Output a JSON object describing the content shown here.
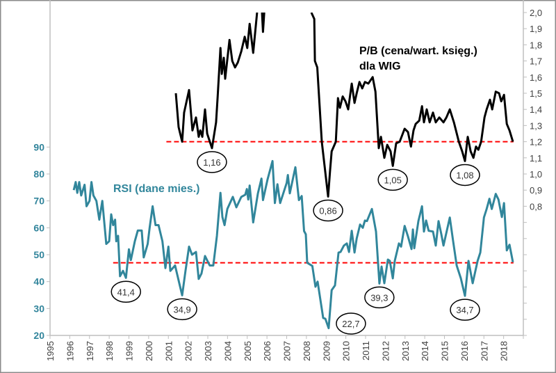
{
  "chart_data": {
    "type": "line",
    "x_range": [
      1995,
      2019
    ],
    "x_tick_labels": [
      "1995",
      "1996",
      "1997",
      "1998",
      "1999",
      "2000",
      "2001",
      "2002",
      "2003",
      "2004",
      "2005",
      "2006",
      "2007",
      "2008",
      "2009",
      "2010",
      "2011",
      "2012",
      "2013",
      "2014",
      "2015",
      "2016",
      "2017",
      "2018"
    ],
    "left_axis": {
      "range": [
        20,
        140
      ],
      "tick_labels": [
        "20",
        "30",
        "40",
        "50",
        "60",
        "70",
        "80",
        "90"
      ],
      "tick_values": [
        20,
        30,
        40,
        50,
        60,
        70,
        80,
        90
      ]
    },
    "right_axis": {
      "range": [
        0,
        2.0
      ],
      "tick_labels": [
        "0,8",
        "0,9",
        "1,0",
        "1,1",
        "1,2",
        "1,3",
        "1,4",
        "1,5",
        "1,6",
        "1,7",
        "1,8",
        "1,9",
        "2,0"
      ],
      "tick_values": [
        0.8,
        0.9,
        1.0,
        1.1,
        1.2,
        1.3,
        1.4,
        1.5,
        1.6,
        1.7,
        1.8,
        1.9,
        2.0
      ]
    },
    "grid": false,
    "colors": {
      "rsi": "#31869b",
      "pb": "#000000",
      "threshold": "#ff0000"
    },
    "series": [
      {
        "name": "RSI (dane mies.)",
        "axis": "left",
        "points": [
          [
            1996.2,
            74
          ],
          [
            1996.3,
            77
          ],
          [
            1996.38,
            73
          ],
          [
            1996.48,
            77
          ],
          [
            1996.58,
            72
          ],
          [
            1996.75,
            76
          ],
          [
            1996.85,
            68
          ],
          [
            1997.0,
            70
          ],
          [
            1997.1,
            77
          ],
          [
            1997.2,
            72
          ],
          [
            1997.35,
            70
          ],
          [
            1997.5,
            63
          ],
          [
            1997.65,
            70
          ],
          [
            1997.85,
            54
          ],
          [
            1998.0,
            55
          ],
          [
            1998.1,
            65
          ],
          [
            1998.2,
            61
          ],
          [
            1998.3,
            63
          ],
          [
            1998.36,
            55
          ],
          [
            1998.45,
            57
          ],
          [
            1998.55,
            42
          ],
          [
            1998.7,
            44
          ],
          [
            1998.85,
            41.4
          ],
          [
            1999.0,
            52
          ],
          [
            1999.1,
            48
          ],
          [
            1999.3,
            55
          ],
          [
            1999.45,
            59
          ],
          [
            1999.65,
            59
          ],
          [
            1999.75,
            49
          ],
          [
            1999.95,
            54
          ],
          [
            2000.05,
            60
          ],
          [
            2000.2,
            68
          ],
          [
            2000.35,
            61
          ],
          [
            2000.5,
            61
          ],
          [
            2000.7,
            55
          ],
          [
            2000.85,
            45
          ],
          [
            2001.0,
            53
          ],
          [
            2001.1,
            44
          ],
          [
            2001.34,
            46
          ],
          [
            2001.7,
            34.9
          ],
          [
            2001.87,
            44
          ],
          [
            2002.05,
            53
          ],
          [
            2002.2,
            50
          ],
          [
            2002.4,
            51
          ],
          [
            2002.54,
            41
          ],
          [
            2002.68,
            43
          ],
          [
            2002.86,
            49.5
          ],
          [
            2003.1,
            46
          ],
          [
            2003.28,
            46
          ],
          [
            2003.46,
            57
          ],
          [
            2003.64,
            73
          ],
          [
            2003.74,
            64
          ],
          [
            2003.85,
            61
          ],
          [
            2003.99,
            67
          ],
          [
            2004.27,
            71.5
          ],
          [
            2004.45,
            67.6
          ],
          [
            2004.7,
            71.5
          ],
          [
            2004.9,
            72.3
          ],
          [
            2004.98,
            74.4
          ],
          [
            2005.05,
            70.5
          ],
          [
            2005.12,
            75.7
          ],
          [
            2005.3,
            62
          ],
          [
            2005.54,
            72.8
          ],
          [
            2005.72,
            78.3
          ],
          [
            2005.8,
            70.3
          ],
          [
            2006.03,
            78
          ],
          [
            2006.28,
            84.8
          ],
          [
            2006.4,
            69.2
          ],
          [
            2006.53,
            76.2
          ],
          [
            2006.67,
            69.2
          ],
          [
            2007.0,
            76.7
          ],
          [
            2007.06,
            79.6
          ],
          [
            2007.16,
            72.8
          ],
          [
            2007.44,
            82.5
          ],
          [
            2007.62,
            70.3
          ],
          [
            2007.76,
            71.8
          ],
          [
            2007.88,
            58.8
          ],
          [
            2007.97,
            57.6
          ],
          [
            2008.04,
            47
          ],
          [
            2008.3,
            45.8
          ],
          [
            2008.46,
            38.1
          ],
          [
            2008.57,
            40
          ],
          [
            2008.85,
            26.5
          ],
          [
            2008.96,
            26.2
          ],
          [
            2009.13,
            22.7
          ],
          [
            2009.28,
            36.8
          ],
          [
            2009.45,
            38.6
          ],
          [
            2009.63,
            50.8
          ],
          [
            2009.73,
            51
          ],
          [
            2009.9,
            53.4
          ],
          [
            2010.05,
            54.2
          ],
          [
            2010.16,
            51
          ],
          [
            2010.3,
            58.9
          ],
          [
            2010.44,
            50.8
          ],
          [
            2010.55,
            56
          ],
          [
            2010.72,
            61.2
          ],
          [
            2010.86,
            60
          ],
          [
            2010.97,
            62.7
          ],
          [
            2011.07,
            62.5
          ],
          [
            2011.32,
            67
          ],
          [
            2011.53,
            58.6
          ],
          [
            2011.7,
            39.3
          ],
          [
            2011.81,
            45.6
          ],
          [
            2011.95,
            39.4
          ],
          [
            2012.13,
            48.2
          ],
          [
            2012.23,
            47.7
          ],
          [
            2012.38,
            41.2
          ],
          [
            2012.48,
            47.7
          ],
          [
            2012.69,
            54.2
          ],
          [
            2012.8,
            53
          ],
          [
            2012.98,
            60.7
          ],
          [
            2013.15,
            56.8
          ],
          [
            2013.33,
            52.1
          ],
          [
            2013.4,
            59.4
          ],
          [
            2013.47,
            52.4
          ],
          [
            2013.68,
            62.5
          ],
          [
            2013.86,
            68
          ],
          [
            2013.96,
            58.6
          ],
          [
            2014.07,
            62.7
          ],
          [
            2014.2,
            58.9
          ],
          [
            2014.42,
            58.6
          ],
          [
            2014.56,
            53.4
          ],
          [
            2014.7,
            62.5
          ],
          [
            2014.84,
            57.6
          ],
          [
            2014.95,
            53.4
          ],
          [
            2015.27,
            63.8
          ],
          [
            2015.44,
            55
          ],
          [
            2015.62,
            46
          ],
          [
            2015.83,
            41.2
          ],
          [
            2016.04,
            34.7
          ],
          [
            2016.22,
            47.7
          ],
          [
            2016.43,
            39.4
          ],
          [
            2016.68,
            47.7
          ],
          [
            2016.82,
            50.8
          ],
          [
            2017.0,
            63.8
          ],
          [
            2017.14,
            67
          ],
          [
            2017.28,
            70.8
          ],
          [
            2017.4,
            67
          ],
          [
            2017.6,
            72.6
          ],
          [
            2017.74,
            70.5
          ],
          [
            2017.91,
            64
          ],
          [
            2018.02,
            69.2
          ],
          [
            2018.16,
            51.6
          ],
          [
            2018.3,
            53.7
          ],
          [
            2018.47,
            47.2
          ]
        ]
      },
      {
        "name": "P/B (cena/wart. księg.)",
        "axis": "right",
        "points": [
          [
            2001.38,
            1.5
          ],
          [
            2001.52,
            1.29
          ],
          [
            2001.7,
            1.2
          ],
          [
            2001.8,
            1.38
          ],
          [
            2002.05,
            1.52
          ],
          [
            2002.22,
            1.27
          ],
          [
            2002.4,
            1.35
          ],
          [
            2002.54,
            1.23
          ],
          [
            2002.62,
            1.27
          ],
          [
            2002.72,
            1.23
          ],
          [
            2002.86,
            1.4
          ],
          [
            2002.97,
            1.25
          ],
          [
            2003.21,
            1.16
          ],
          [
            2003.42,
            1.32
          ],
          [
            2003.5,
            1.48
          ],
          [
            2003.64,
            1.78
          ],
          [
            2003.71,
            1.62
          ],
          [
            2003.81,
            1.72
          ],
          [
            2003.88,
            1.59
          ],
          [
            2004.1,
            1.83
          ],
          [
            2004.24,
            1.7
          ],
          [
            2004.38,
            1.66
          ],
          [
            2004.52,
            1.69
          ],
          [
            2004.7,
            1.76
          ],
          [
            2004.87,
            1.85
          ],
          [
            2005.0,
            1.78
          ],
          [
            2005.12,
            1.93
          ],
          [
            2005.3,
            1.75
          ],
          [
            2005.5,
            2.0
          ],
          null,
          [
            2005.75,
            2.0
          ],
          [
            2005.8,
            1.88
          ],
          [
            2005.86,
            2.0
          ],
          null,
          [
            2008.25,
            2.0
          ],
          [
            2008.4,
            1.96
          ],
          [
            2008.43,
            1.7
          ],
          [
            2008.55,
            1.66
          ],
          [
            2008.78,
            1.2
          ],
          [
            2009.1,
            0.86
          ],
          [
            2009.2,
            1.02
          ],
          [
            2009.28,
            1.14
          ],
          [
            2009.49,
            1.2
          ],
          [
            2009.6,
            1.47
          ],
          [
            2009.7,
            1.41
          ],
          [
            2009.84,
            1.48
          ],
          [
            2009.98,
            1.45
          ],
          [
            2010.12,
            1.4
          ],
          [
            2010.3,
            1.56
          ],
          [
            2010.44,
            1.44
          ],
          [
            2010.55,
            1.5
          ],
          [
            2010.69,
            1.57
          ],
          [
            2010.83,
            1.53
          ],
          [
            2010.97,
            1.57
          ],
          [
            2011.14,
            1.56
          ],
          [
            2011.36,
            1.6
          ],
          [
            2011.5,
            1.51
          ],
          [
            2011.67,
            1.16
          ],
          [
            2011.78,
            1.23
          ],
          [
            2011.95,
            1.1
          ],
          [
            2012.1,
            1.18
          ],
          [
            2012.27,
            1.14
          ],
          [
            2012.38,
            1.05
          ],
          [
            2012.55,
            1.19
          ],
          [
            2012.73,
            1.2
          ],
          [
            2012.98,
            1.28
          ],
          [
            2013.15,
            1.26
          ],
          [
            2013.3,
            1.17
          ],
          [
            2013.43,
            1.27
          ],
          [
            2013.54,
            1.31
          ],
          [
            2013.72,
            1.33
          ],
          [
            2013.86,
            1.42
          ],
          [
            2013.96,
            1.32
          ],
          [
            2014.1,
            1.4
          ],
          [
            2014.25,
            1.32
          ],
          [
            2014.42,
            1.38
          ],
          [
            2014.56,
            1.32
          ],
          [
            2014.74,
            1.35
          ],
          [
            2014.95,
            1.32
          ],
          [
            2015.1,
            1.35
          ],
          [
            2015.27,
            1.4
          ],
          [
            2015.48,
            1.32
          ],
          [
            2015.73,
            1.2
          ],
          [
            2015.9,
            1.14
          ],
          [
            2016.04,
            1.08
          ],
          [
            2016.18,
            1.23
          ],
          [
            2016.33,
            1.14
          ],
          [
            2016.47,
            1.1
          ],
          [
            2016.6,
            1.17
          ],
          [
            2016.72,
            1.15
          ],
          [
            2016.86,
            1.2
          ],
          [
            2017.03,
            1.35
          ],
          [
            2017.14,
            1.4
          ],
          [
            2017.31,
            1.46
          ],
          [
            2017.42,
            1.4
          ],
          [
            2017.6,
            1.51
          ],
          [
            2017.77,
            1.5
          ],
          [
            2017.88,
            1.45
          ],
          [
            2018.02,
            1.49
          ],
          [
            2018.16,
            1.31
          ],
          [
            2018.3,
            1.27
          ],
          [
            2018.47,
            1.2
          ]
        ]
      }
    ],
    "thresholds": [
      {
        "axis": "left",
        "value": 47,
        "x_from": 1998.2,
        "x_to": 2018.5
      },
      {
        "axis": "right",
        "value": 1.2,
        "x_from": 2000.9,
        "x_to": 2018.5
      }
    ],
    "annotations": [
      {
        "text": "41,4",
        "axis": "left",
        "x": 1998.85,
        "y": 41.4
      },
      {
        "text": "34,9",
        "axis": "left",
        "x": 2001.7,
        "y": 34.9
      },
      {
        "text": "22,7",
        "axis": "left",
        "x": 2009.13,
        "y": 22.7
      },
      {
        "text": "39,3",
        "axis": "left",
        "x": 2011.7,
        "y": 39.3
      },
      {
        "text": "34,7",
        "axis": "left",
        "x": 2016.04,
        "y": 34.7
      },
      {
        "text": "1,16",
        "axis": "right",
        "x": 2003.21,
        "y": 1.16
      },
      {
        "text": "0,86",
        "axis": "right",
        "x": 2009.1,
        "y": 0.86
      },
      {
        "text": "1,05",
        "axis": "right",
        "x": 2012.38,
        "y": 1.05
      },
      {
        "text": "1,08",
        "axis": "right",
        "x": 2016.04,
        "y": 1.08
      }
    ],
    "labels": {
      "rsi": "RSI (dane mies.)",
      "pb_line1": "P/B (cena/wart. księg.)",
      "pb_line2": "dla WIG"
    }
  }
}
